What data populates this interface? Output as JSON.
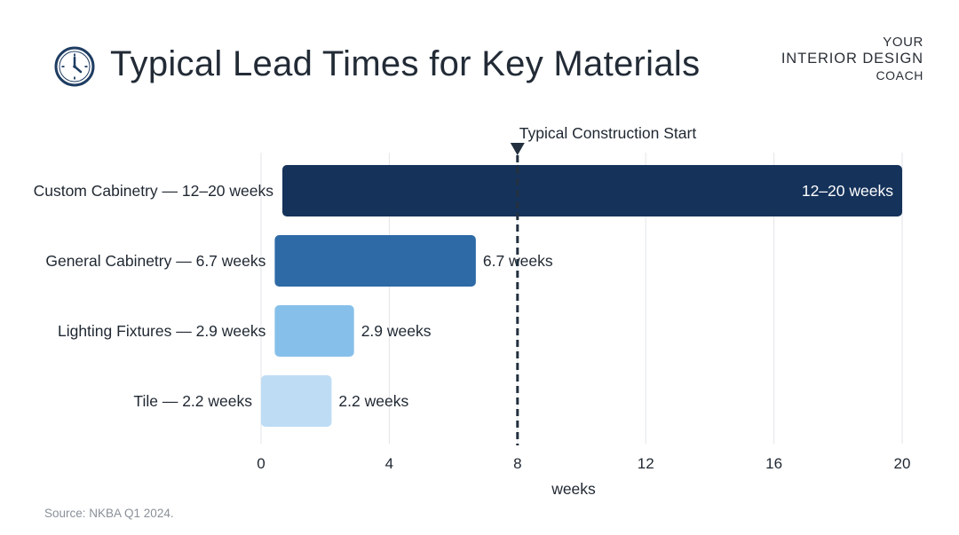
{
  "header": {
    "title": "Typical Lead Times for Key Materials",
    "brand_line1": "YOUR",
    "brand_line2": "INTERIOR DESIGN",
    "brand_line3": "COACH",
    "icon": "clock-icon"
  },
  "footer": {
    "source": "Source: NKBA Q1 2024."
  },
  "chart_data": {
    "type": "bar",
    "orientation": "horizontal",
    "title": "Typical Lead Times for Key Materials",
    "xlabel": "weeks",
    "ylabel": "",
    "xlim": [
      0,
      20
    ],
    "xticks": [
      0,
      4,
      8,
      12,
      16,
      20
    ],
    "grid": true,
    "categories": [
      "Custom Cabinetry — 12–20 weeks",
      "General Cabinetry — 6.7 weeks",
      "Lighting Fixtures — 2.9 weeks",
      "Tile — 2.2 weeks"
    ],
    "values": [
      20,
      6.7,
      2.9,
      2.2
    ],
    "data_labels": [
      "12–20 weeks",
      "6.7 weeks",
      "2.9 weeks",
      "2.2 weeks"
    ],
    "colors": [
      "#15325a",
      "#2e6aa6",
      "#86c0ea",
      "#bedcf4"
    ],
    "reference_line": {
      "value": 8,
      "label": "Typical Construction Start",
      "color": "#22303f"
    }
  }
}
